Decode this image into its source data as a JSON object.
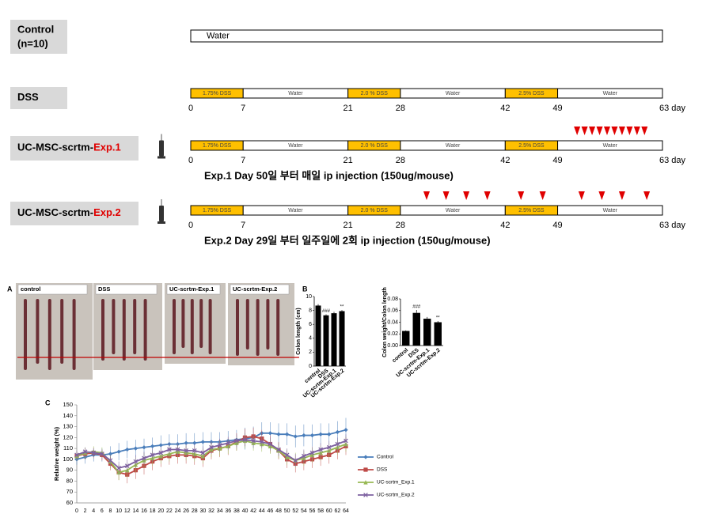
{
  "protocol": {
    "ticks": [
      0,
      7,
      21,
      28,
      42,
      49,
      {
        "value": 63,
        "label": "63 day"
      }
    ],
    "control_bar": {
      "start": 0,
      "end": 63,
      "label": "Water",
      "color": "#ffffff"
    },
    "schedule": [
      {
        "start": 0,
        "end": 7,
        "label": "1.75% DSS",
        "color": "#ffc000"
      },
      {
        "start": 7,
        "end": 21,
        "label": "Water",
        "color": "#ffffff"
      },
      {
        "start": 21,
        "end": 28,
        "label": "2.0 % DSS",
        "color": "#ffc000"
      },
      {
        "start": 28,
        "end": 42,
        "label": "Water",
        "color": "#ffffff"
      },
      {
        "start": 42,
        "end": 49,
        "label": "2.5% DSS",
        "color": "#ffc000"
      },
      {
        "start": 49,
        "end": 63,
        "label": "Water",
        "color": "#ffffff"
      }
    ],
    "groups": [
      {
        "label": "Control",
        "sublabel": "(n=10)",
        "regimen": "water"
      },
      {
        "label": "DSS",
        "regimen": "dss"
      },
      {
        "label": "UC-MSC-scrtm-",
        "label_highlight": "Exp.1",
        "regimen": "dss",
        "injection_days": [
          51.6,
          52.6,
          53.6,
          54.6,
          55.6,
          56.6,
          57.6,
          58.6,
          59.6,
          60.6
        ],
        "note": "Exp.1 Day 50일 부터 매일 ip injection (150ug/mouse)"
      },
      {
        "label": "UC-MSC-scrtm-",
        "label_highlight": "Exp.2",
        "regimen": "dss",
        "injection_days": [
          31.5,
          34.1,
          36.8,
          39.6,
          44.1,
          47.0,
          52.2,
          54.9,
          57.6,
          60.9
        ],
        "note": "Exp.2 Day 29일 부터 일주일에 2회 ip injection (150ug/mouse)"
      }
    ]
  },
  "panels": {
    "A": {
      "letter": "A",
      "photo_labels": [
        "control",
        "DSS",
        "UC-scrtm-Exp.1",
        "UC-scrtm-Exp.2"
      ]
    },
    "B": {
      "letter": "B"
    },
    "C": {
      "letter": "C"
    }
  },
  "chart_data": [
    {
      "type": "bar",
      "y_label": "Colon length (cm)",
      "categories": [
        "control",
        "DSS",
        "UC-scrtm-Exp.1",
        "UC-scrtm-Exp.2"
      ],
      "values": [
        8.7,
        7.3,
        7.6,
        7.9
      ],
      "errors": [
        0.2,
        0.15,
        0.2,
        0.15
      ],
      "annotations": [
        null,
        "###",
        null,
        "**"
      ],
      "color": "#000000",
      "ylim": [
        0,
        10
      ],
      "yticks": [
        0,
        2,
        4,
        6,
        8,
        10
      ]
    },
    {
      "type": "bar",
      "y_label": "Colon weight/Colon length",
      "categories": [
        "control",
        "DSS",
        "UC-scrtm-Exp.1",
        "UC-scrtm-Exp.2"
      ],
      "values": [
        0.025,
        0.056,
        0.046,
        0.04
      ],
      "errors": [
        0.001,
        0.005,
        0.003,
        0.002
      ],
      "annotations": [
        null,
        "###",
        null,
        "**"
      ],
      "color": "#000000",
      "ylim": [
        0,
        0.08
      ],
      "yticks": [
        {
          "value": 0,
          "label": "0.00"
        },
        0.02,
        0.04,
        0.06,
        0.08
      ]
    },
    {
      "type": "line",
      "y_label": "Relative weight (%)",
      "x": [
        0,
        2,
        4,
        6,
        8,
        10,
        12,
        14,
        16,
        18,
        20,
        22,
        24,
        26,
        28,
        30,
        32,
        34,
        36,
        38,
        40,
        42,
        44,
        46,
        48,
        50,
        52,
        54,
        56,
        58,
        60,
        62,
        64
      ],
      "xlim": [
        0,
        64
      ],
      "ylim": [
        60,
        150
      ],
      "yticks": [
        60,
        70,
        80,
        90,
        100,
        110,
        120,
        130,
        140,
        150
      ],
      "series": [
        {
          "name": "Control",
          "color": "#4a7ebb",
          "marker": "diamond",
          "values": [
            100,
            102,
            104,
            104,
            105,
            107,
            109,
            110,
            111,
            112,
            113,
            114,
            114,
            115,
            115,
            116,
            116,
            116,
            117,
            118,
            119,
            120,
            124,
            124,
            123,
            123,
            121,
            122,
            122,
            123,
            123,
            125,
            127
          ],
          "errors": [
            5,
            6,
            6,
            6,
            7,
            8,
            8,
            8,
            8,
            8,
            9,
            9,
            9,
            9,
            9,
            9,
            9,
            9,
            9,
            9,
            10,
            10,
            10,
            10,
            10,
            10,
            10,
            10,
            10,
            10,
            10,
            10,
            11
          ]
        },
        {
          "name": "DSS",
          "color": "#be4b48",
          "marker": "square",
          "values": [
            103,
            105,
            106,
            104,
            96,
            88,
            86,
            90,
            94,
            98,
            101,
            103,
            104,
            104,
            103,
            101,
            108,
            110,
            112,
            116,
            120,
            121,
            119,
            114,
            108,
            100,
            96,
            98,
            100,
            102,
            104,
            108,
            112
          ],
          "errors": [
            4,
            5,
            5,
            5,
            6,
            7,
            8,
            8,
            8,
            8,
            8,
            8,
            8,
            8,
            8,
            8,
            8,
            8,
            8,
            8,
            8,
            8,
            8,
            8,
            8,
            8,
            8,
            8,
            8,
            8,
            8,
            8,
            8
          ]
        },
        {
          "name": "UC-scrtm_Exp.1",
          "color": "#98b954",
          "marker": "triangle",
          "values": [
            103,
            106,
            107,
            106,
            98,
            88,
            90,
            95,
            99,
            101,
            103,
            105,
            107,
            106,
            105,
            103,
            109,
            110,
            112,
            115,
            117,
            115,
            114,
            112,
            108,
            102,
            99,
            101,
            104,
            106,
            108,
            111,
            114
          ],
          "errors": [
            4,
            5,
            5,
            5,
            6,
            7,
            7,
            7,
            7,
            7,
            7,
            7,
            7,
            7,
            7,
            7,
            7,
            7,
            7,
            7,
            7,
            7,
            7,
            7,
            7,
            7,
            7,
            7,
            7,
            7,
            7,
            7,
            7
          ]
        },
        {
          "name": "UC-scrtm_Exp.2",
          "color": "#7d60a0",
          "marker": "cross",
          "values": [
            104,
            107,
            106,
            105,
            99,
            92,
            94,
            98,
            101,
            104,
            106,
            109,
            109,
            108,
            108,
            106,
            111,
            113,
            115,
            117,
            118,
            117,
            116,
            114,
            109,
            104,
            99,
            103,
            106,
            109,
            111,
            114,
            117
          ],
          "errors": [
            4,
            4,
            4,
            4,
            5,
            6,
            6,
            6,
            6,
            6,
            6,
            6,
            6,
            6,
            6,
            6,
            6,
            6,
            6,
            6,
            6,
            6,
            6,
            6,
            6,
            6,
            6,
            6,
            6,
            6,
            6,
            6,
            6
          ]
        }
      ]
    }
  ]
}
